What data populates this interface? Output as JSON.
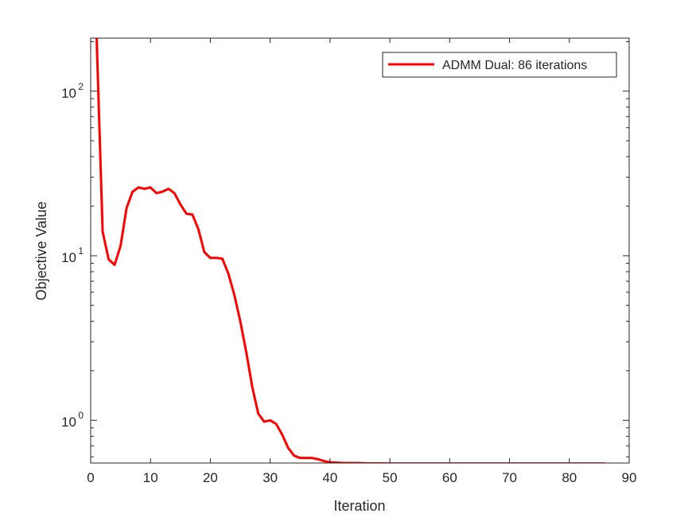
{
  "chart_data": {
    "type": "line",
    "xlabel": "Iteration",
    "ylabel": "Objective Value",
    "xlim": [
      0,
      90
    ],
    "ylim": [
      0.55,
      210
    ],
    "yscale": "log",
    "xticks": [
      0,
      10,
      20,
      30,
      40,
      50,
      60,
      70,
      80,
      90
    ],
    "yticks": [
      1,
      10,
      100
    ],
    "ytick_labels": [
      {
        "base": "10",
        "exp": "0"
      },
      {
        "base": "10",
        "exp": "1"
      },
      {
        "base": "10",
        "exp": "2"
      }
    ],
    "grid": false,
    "legend_position": "top-right",
    "series": [
      {
        "name": "ADMM Dual: 86 iterations",
        "color": "#ff0000",
        "x": [
          1,
          2,
          3,
          4,
          5,
          6,
          7,
          8,
          9,
          10,
          11,
          12,
          13,
          14,
          15,
          16,
          17,
          18,
          19,
          20,
          21,
          22,
          23,
          24,
          25,
          26,
          27,
          28,
          29,
          30,
          31,
          32,
          33,
          34,
          35,
          36,
          37,
          38,
          39,
          40,
          41,
          42,
          43,
          44,
          45,
          46,
          47,
          48,
          49,
          50,
          51,
          52,
          53,
          54,
          55,
          56,
          57,
          58,
          59,
          60,
          61,
          62,
          63,
          64,
          65,
          66,
          67,
          68,
          69,
          70,
          71,
          72,
          73,
          74,
          75,
          76,
          77,
          78,
          79,
          80,
          81,
          82,
          83,
          84,
          85,
          86
        ],
        "y": [
          210,
          14,
          9.5,
          8.8,
          11.5,
          19.5,
          24.5,
          26,
          25.5,
          26,
          24,
          24.5,
          25.5,
          24,
          20.5,
          18,
          17.8,
          14.5,
          10.5,
          9.7,
          9.7,
          9.6,
          7.8,
          5.8,
          4.0,
          2.6,
          1.6,
          1.1,
          0.98,
          1.0,
          0.95,
          0.82,
          0.68,
          0.61,
          0.59,
          0.59,
          0.59,
          0.58,
          0.565,
          0.556,
          0.553,
          0.551,
          0.55,
          0.55,
          0.549,
          0.548,
          0.547,
          0.547,
          0.547,
          0.546,
          0.546,
          0.546,
          0.546,
          0.546,
          0.546,
          0.546,
          0.546,
          0.546,
          0.546,
          0.546,
          0.546,
          0.546,
          0.546,
          0.546,
          0.546,
          0.546,
          0.546,
          0.546,
          0.546,
          0.546,
          0.546,
          0.546,
          0.546,
          0.546,
          0.546,
          0.546,
          0.546,
          0.546,
          0.546,
          0.546,
          0.546,
          0.546,
          0.546,
          0.546,
          0.546,
          0.546
        ]
      }
    ]
  }
}
